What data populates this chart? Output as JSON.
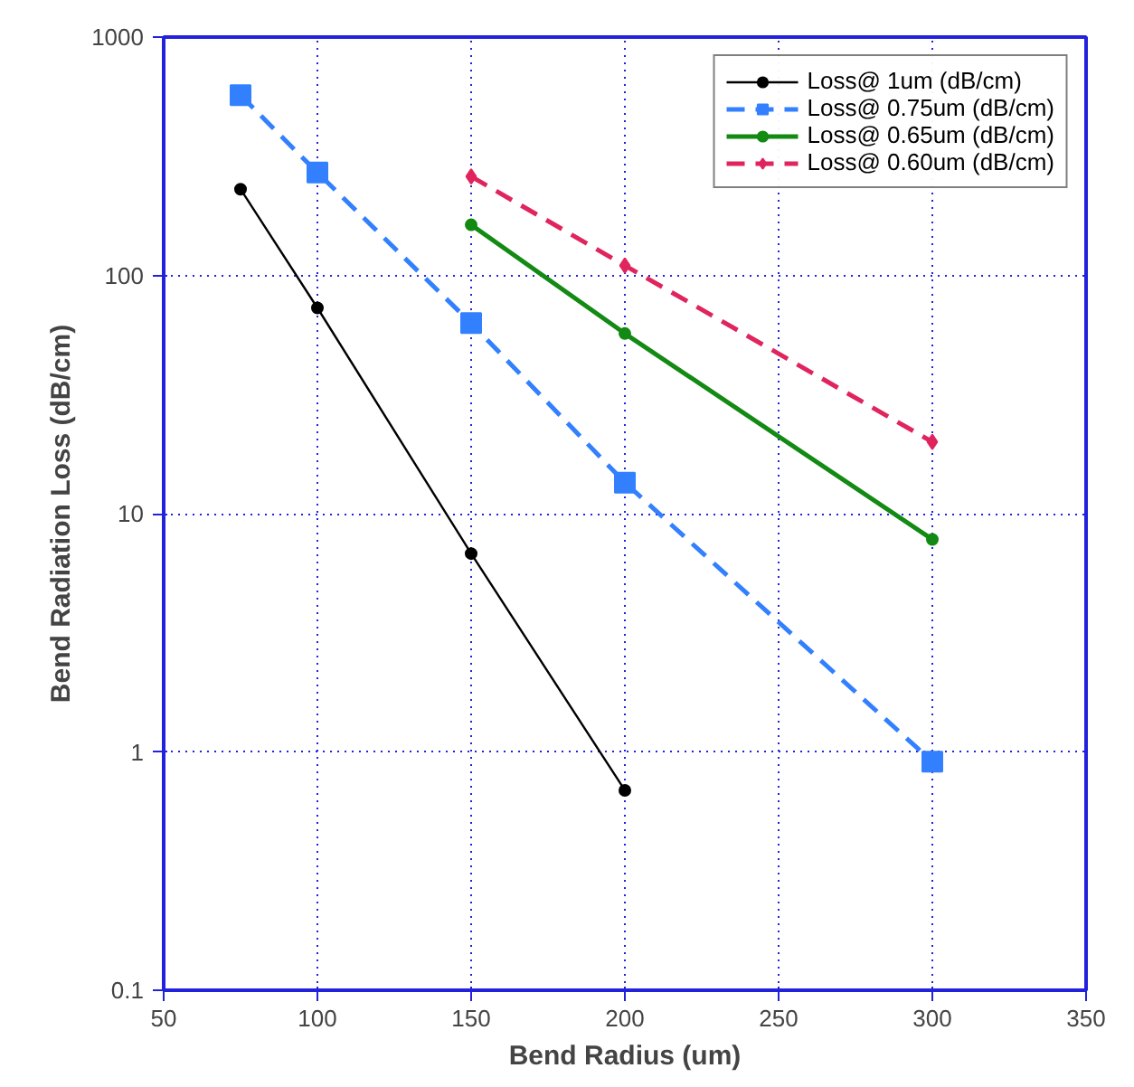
{
  "chart_data": {
    "type": "line",
    "xlabel": "Bend Radius (um)",
    "ylabel": "Bend Radiation Loss (dB/cm)",
    "log": "y",
    "xlim": [
      50,
      350
    ],
    "xticks": [
      50,
      100,
      150,
      200,
      250,
      300,
      350
    ],
    "ylim": [
      0.1,
      1000
    ],
    "yticks": [
      0.1,
      1,
      10,
      100,
      1000
    ],
    "grid": true,
    "legend": "top right",
    "series": [
      {
        "name": "Loss@ 1um (dB/cm)",
        "color": "#000000",
        "marker": "circle",
        "line_style": "solid",
        "x": [
          75,
          100,
          150,
          200
        ],
        "values": [
          230,
          73,
          6.8,
          0.69
        ]
      },
      {
        "name": "Loss@ 0.75um (dB/cm)",
        "color": "#3380ff",
        "marker": "square",
        "line_style": "dashed",
        "x": [
          75,
          100,
          150,
          200,
          300
        ],
        "values": [
          570,
          270,
          63,
          13.5,
          0.91
        ]
      },
      {
        "name": "Loss@ 0.65um (dB/cm)",
        "color": "#138a13",
        "marker": "circle",
        "line_style": "solid",
        "x": [
          150,
          200,
          300
        ],
        "values": [
          163,
          57,
          7.8
        ]
      },
      {
        "name": "Loss@ 0.60um (dB/cm)",
        "color": "#e0245e",
        "marker": "diamond",
        "line_style": "dashed",
        "x": [
          150,
          200,
          300
        ],
        "values": [
          260,
          110,
          20
        ]
      }
    ]
  }
}
